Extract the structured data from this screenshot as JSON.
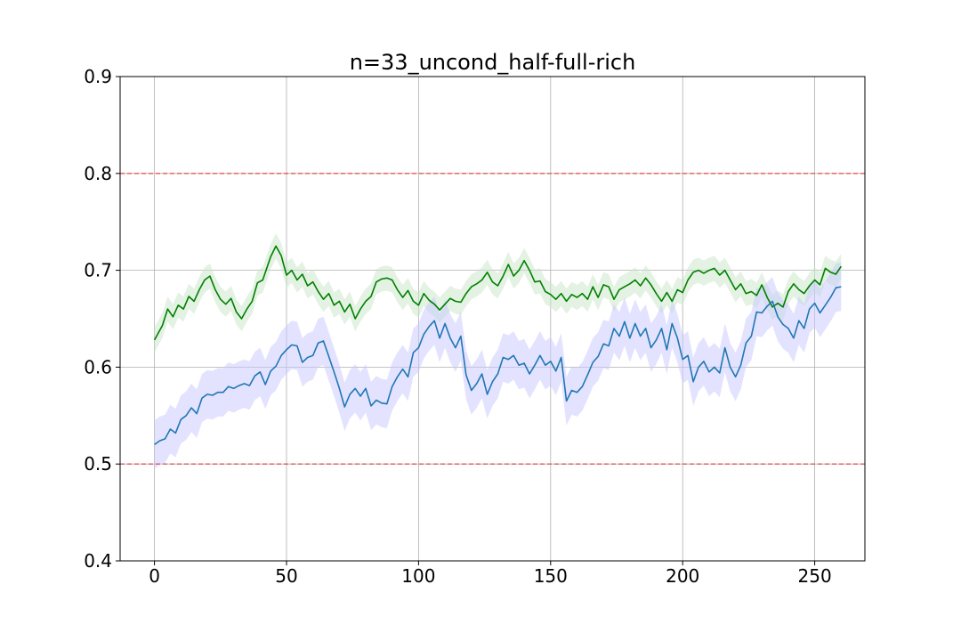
{
  "chart_data": {
    "type": "line",
    "title": "n=33_uncond_half-full-rich",
    "xlabel": "",
    "ylabel": "",
    "xlim": [
      -13,
      269
    ],
    "ylim": [
      0.4,
      0.9
    ],
    "x_ticks": [
      0,
      50,
      100,
      150,
      200,
      250
    ],
    "y_ticks": [
      0.4,
      0.5,
      0.6,
      0.7,
      0.8,
      0.9
    ],
    "x_tick_labels": [
      "0",
      "50",
      "100",
      "150",
      "200",
      "250"
    ],
    "y_tick_labels": [
      "0.4",
      "0.5",
      "0.6",
      "0.7",
      "0.8",
      "0.9"
    ],
    "grid": true,
    "legend": "none",
    "hlines": [
      {
        "y": 0.8,
        "color": "#e8575a",
        "style": "dashed"
      },
      {
        "y": 0.5,
        "color": "#e8575a",
        "style": "dashed"
      }
    ],
    "series": [
      {
        "color": "#008000",
        "band_color": "#c8e6c8",
        "band_halfwidth": 0.013,
        "points": [
          [
            0,
            0.628
          ],
          [
            3,
            0.643
          ],
          [
            5,
            0.66
          ],
          [
            7,
            0.652
          ],
          [
            9,
            0.664
          ],
          [
            11,
            0.66
          ],
          [
            13,
            0.673
          ],
          [
            15,
            0.668
          ],
          [
            17,
            0.68
          ],
          [
            19,
            0.69
          ],
          [
            21,
            0.694
          ],
          [
            23,
            0.68
          ],
          [
            25,
            0.67
          ],
          [
            27,
            0.665
          ],
          [
            29,
            0.671
          ],
          [
            31,
            0.657
          ],
          [
            33,
            0.65
          ],
          [
            35,
            0.66
          ],
          [
            37,
            0.668
          ],
          [
            39,
            0.687
          ],
          [
            41,
            0.69
          ],
          [
            43,
            0.706
          ],
          [
            44,
            0.714
          ],
          [
            46,
            0.725
          ],
          [
            48,
            0.715
          ],
          [
            50,
            0.695
          ],
          [
            52,
            0.7
          ],
          [
            54,
            0.69
          ],
          [
            56,
            0.696
          ],
          [
            58,
            0.684
          ],
          [
            60,
            0.688
          ],
          [
            62,
            0.678
          ],
          [
            64,
            0.67
          ],
          [
            66,
            0.676
          ],
          [
            68,
            0.664
          ],
          [
            70,
            0.668
          ],
          [
            72,
            0.657
          ],
          [
            74,
            0.665
          ],
          [
            76,
            0.65
          ],
          [
            78,
            0.66
          ],
          [
            80,
            0.668
          ],
          [
            82,
            0.673
          ],
          [
            84,
            0.688
          ],
          [
            86,
            0.691
          ],
          [
            88,
            0.692
          ],
          [
            90,
            0.69
          ],
          [
            92,
            0.68
          ],
          [
            94,
            0.672
          ],
          [
            96,
            0.679
          ],
          [
            98,
            0.668
          ],
          [
            100,
            0.664
          ],
          [
            102,
            0.676
          ],
          [
            104,
            0.669
          ],
          [
            106,
            0.665
          ],
          [
            108,
            0.659
          ],
          [
            110,
            0.665
          ],
          [
            112,
            0.671
          ],
          [
            114,
            0.668
          ],
          [
            116,
            0.667
          ],
          [
            118,
            0.676
          ],
          [
            120,
            0.683
          ],
          [
            122,
            0.686
          ],
          [
            124,
            0.69
          ],
          [
            126,
            0.698
          ],
          [
            128,
            0.688
          ],
          [
            130,
            0.684
          ],
          [
            132,
            0.694
          ],
          [
            134,
            0.706
          ],
          [
            136,
            0.694
          ],
          [
            138,
            0.7
          ],
          [
            140,
            0.71
          ],
          [
            142,
            0.7
          ],
          [
            144,
            0.688
          ],
          [
            146,
            0.689
          ],
          [
            148,
            0.678
          ],
          [
            150,
            0.675
          ],
          [
            152,
            0.67
          ],
          [
            154,
            0.676
          ],
          [
            156,
            0.668
          ],
          [
            158,
            0.675
          ],
          [
            160,
            0.672
          ],
          [
            162,
            0.676
          ],
          [
            164,
            0.67
          ],
          [
            166,
            0.683
          ],
          [
            168,
            0.672
          ],
          [
            170,
            0.685
          ],
          [
            172,
            0.683
          ],
          [
            174,
            0.67
          ],
          [
            176,
            0.68
          ],
          [
            178,
            0.683
          ],
          [
            180,
            0.686
          ],
          [
            182,
            0.69
          ],
          [
            184,
            0.684
          ],
          [
            186,
            0.692
          ],
          [
            188,
            0.685
          ],
          [
            190,
            0.676
          ],
          [
            192,
            0.668
          ],
          [
            194,
            0.677
          ],
          [
            196,
            0.668
          ],
          [
            198,
            0.68
          ],
          [
            200,
            0.677
          ],
          [
            202,
            0.69
          ],
          [
            204,
            0.698
          ],
          [
            206,
            0.7
          ],
          [
            208,
            0.697
          ],
          [
            210,
            0.7
          ],
          [
            212,
            0.702
          ],
          [
            214,
            0.695
          ],
          [
            216,
            0.7
          ],
          [
            218,
            0.69
          ],
          [
            220,
            0.68
          ],
          [
            222,
            0.686
          ],
          [
            224,
            0.676
          ],
          [
            226,
            0.678
          ],
          [
            228,
            0.674
          ],
          [
            230,
            0.685
          ],
          [
            232,
            0.672
          ],
          [
            234,
            0.662
          ],
          [
            236,
            0.666
          ],
          [
            238,
            0.662
          ],
          [
            240,
            0.678
          ],
          [
            242,
            0.686
          ],
          [
            244,
            0.68
          ],
          [
            246,
            0.676
          ],
          [
            248,
            0.684
          ],
          [
            250,
            0.69
          ],
          [
            252,
            0.685
          ],
          [
            254,
            0.702
          ],
          [
            256,
            0.698
          ],
          [
            258,
            0.696
          ],
          [
            260,
            0.704
          ]
        ]
      },
      {
        "color": "#1f77b4",
        "band_color": "#c8c8ff",
        "band_halfwidth": 0.025,
        "points": [
          [
            0,
            0.52
          ],
          [
            2,
            0.524
          ],
          [
            4,
            0.526
          ],
          [
            6,
            0.536
          ],
          [
            8,
            0.532
          ],
          [
            10,
            0.546
          ],
          [
            12,
            0.55
          ],
          [
            14,
            0.558
          ],
          [
            16,
            0.552
          ],
          [
            18,
            0.568
          ],
          [
            20,
            0.572
          ],
          [
            22,
            0.571
          ],
          [
            24,
            0.574
          ],
          [
            26,
            0.574
          ],
          [
            28,
            0.58
          ],
          [
            30,
            0.578
          ],
          [
            32,
            0.581
          ],
          [
            34,
            0.583
          ],
          [
            36,
            0.581
          ],
          [
            38,
            0.591
          ],
          [
            40,
            0.595
          ],
          [
            42,
            0.582
          ],
          [
            44,
            0.596
          ],
          [
            46,
            0.601
          ],
          [
            48,
            0.612
          ],
          [
            50,
            0.618
          ],
          [
            52,
            0.623
          ],
          [
            54,
            0.622
          ],
          [
            56,
            0.605
          ],
          [
            58,
            0.61
          ],
          [
            60,
            0.612
          ],
          [
            62,
            0.625
          ],
          [
            64,
            0.627
          ],
          [
            66,
            0.611
          ],
          [
            68,
            0.595
          ],
          [
            70,
            0.578
          ],
          [
            72,
            0.559
          ],
          [
            74,
            0.572
          ],
          [
            76,
            0.578
          ],
          [
            78,
            0.57
          ],
          [
            80,
            0.578
          ],
          [
            82,
            0.56
          ],
          [
            84,
            0.566
          ],
          [
            86,
            0.563
          ],
          [
            88,
            0.562
          ],
          [
            90,
            0.58
          ],
          [
            92,
            0.59
          ],
          [
            94,
            0.598
          ],
          [
            96,
            0.59
          ],
          [
            98,
            0.615
          ],
          [
            100,
            0.62
          ],
          [
            102,
            0.634
          ],
          [
            104,
            0.642
          ],
          [
            106,
            0.648
          ],
          [
            108,
            0.63
          ],
          [
            110,
            0.645
          ],
          [
            112,
            0.63
          ],
          [
            114,
            0.62
          ],
          [
            116,
            0.632
          ],
          [
            118,
            0.592
          ],
          [
            120,
            0.576
          ],
          [
            122,
            0.583
          ],
          [
            124,
            0.593
          ],
          [
            126,
            0.572
          ],
          [
            128,
            0.585
          ],
          [
            130,
            0.593
          ],
          [
            132,
            0.61
          ],
          [
            134,
            0.608
          ],
          [
            136,
            0.612
          ],
          [
            138,
            0.602
          ],
          [
            140,
            0.604
          ],
          [
            142,
            0.593
          ],
          [
            144,
            0.602
          ],
          [
            146,
            0.612
          ],
          [
            148,
            0.602
          ],
          [
            150,
            0.606
          ],
          [
            152,
            0.596
          ],
          [
            154,
            0.61
          ],
          [
            156,
            0.565
          ],
          [
            158,
            0.576
          ],
          [
            160,
            0.574
          ],
          [
            162,
            0.58
          ],
          [
            164,
            0.592
          ],
          [
            166,
            0.605
          ],
          [
            168,
            0.611
          ],
          [
            170,
            0.624
          ],
          [
            172,
            0.622
          ],
          [
            174,
            0.64
          ],
          [
            176,
            0.632
          ],
          [
            178,
            0.647
          ],
          [
            180,
            0.63
          ],
          [
            182,
            0.645
          ],
          [
            184,
            0.632
          ],
          [
            186,
            0.64
          ],
          [
            188,
            0.62
          ],
          [
            190,
            0.628
          ],
          [
            192,
            0.64
          ],
          [
            194,
            0.618
          ],
          [
            196,
            0.645
          ],
          [
            198,
            0.63
          ],
          [
            200,
            0.608
          ],
          [
            202,
            0.612
          ],
          [
            204,
            0.585
          ],
          [
            206,
            0.6
          ],
          [
            208,
            0.606
          ],
          [
            210,
            0.595
          ],
          [
            212,
            0.6
          ],
          [
            214,
            0.594
          ],
          [
            216,
            0.62
          ],
          [
            218,
            0.6
          ],
          [
            220,
            0.59
          ],
          [
            222,
            0.602
          ],
          [
            224,
            0.625
          ],
          [
            226,
            0.632
          ],
          [
            228,
            0.657
          ],
          [
            230,
            0.656
          ],
          [
            232,
            0.663
          ],
          [
            234,
            0.668
          ],
          [
            236,
            0.652
          ],
          [
            238,
            0.644
          ],
          [
            240,
            0.64
          ],
          [
            242,
            0.63
          ],
          [
            244,
            0.648
          ],
          [
            246,
            0.64
          ],
          [
            248,
            0.66
          ],
          [
            250,
            0.666
          ],
          [
            252,
            0.656
          ],
          [
            254,
            0.664
          ],
          [
            256,
            0.672
          ],
          [
            258,
            0.682
          ],
          [
            260,
            0.683
          ]
        ]
      }
    ]
  }
}
